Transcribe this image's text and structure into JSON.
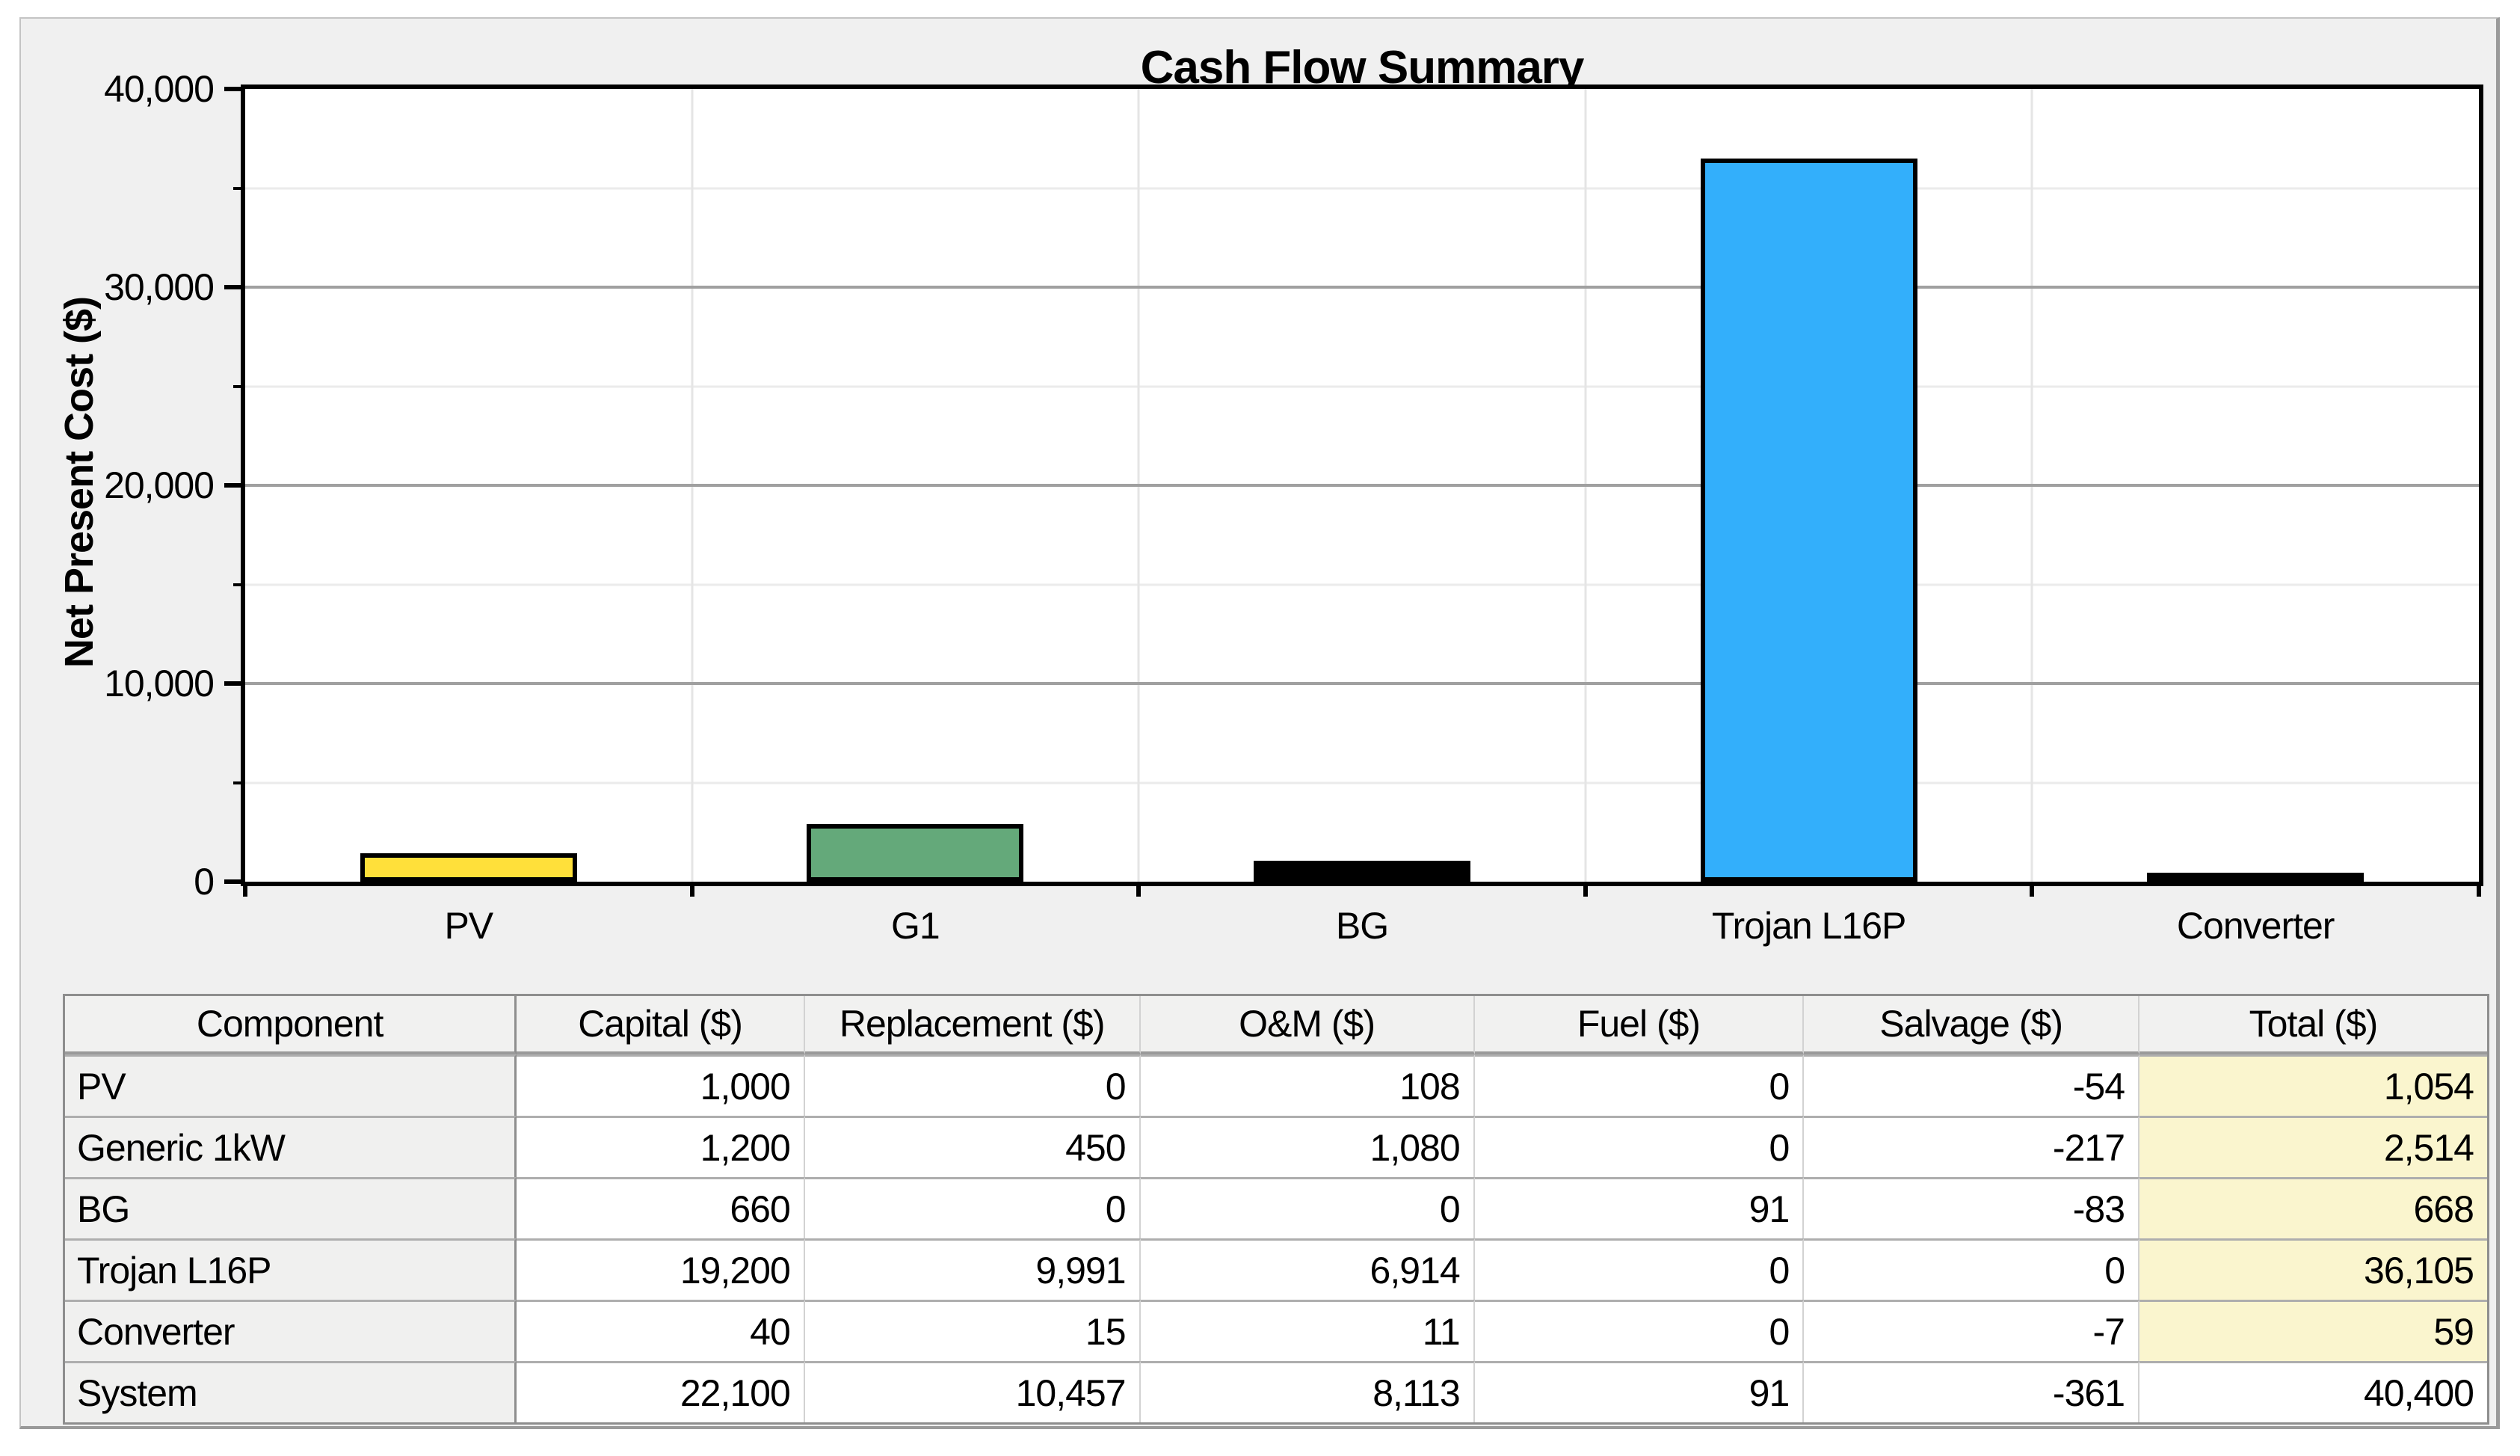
{
  "chart_data": {
    "type": "bar",
    "title": "Cash Flow Summary",
    "ylabel": "Net Present Cost ($)",
    "xlabel": "",
    "categories": [
      "PV",
      "G1",
      "BG",
      "Trojan L16P",
      "Converter"
    ],
    "values": [
      1054,
      2514,
      668,
      36105,
      59
    ],
    "bar_colors": [
      "#FFE03A",
      "#64A97A",
      "#000000",
      "#33AFFB",
      "#000000"
    ],
    "ylim": [
      0,
      40000
    ],
    "yticks": [
      {
        "value": 40000,
        "label": "40,000"
      },
      {
        "value": 30000,
        "label": "30,000"
      },
      {
        "value": 20000,
        "label": "20,000"
      },
      {
        "value": 10000,
        "label": "10,000"
      },
      {
        "value": 0,
        "label": "0"
      }
    ],
    "minor_yticks": [
      35000,
      25000,
      15000,
      5000
    ],
    "grid": true,
    "legend_position": "none"
  },
  "table": {
    "columns": [
      "Component",
      "Capital ($)",
      "Replacement ($)",
      "O&M ($)",
      "Fuel ($)",
      "Salvage ($)",
      "Total ($)"
    ],
    "rows": [
      {
        "cells": [
          "PV",
          "1,000",
          "0",
          "108",
          "0",
          "-54",
          "1,054"
        ],
        "total_highlight": true
      },
      {
        "cells": [
          "Generic 1kW",
          "1,200",
          "450",
          "1,080",
          "0",
          "-217",
          "2,514"
        ],
        "total_highlight": true
      },
      {
        "cells": [
          "BG",
          "660",
          "0",
          "0",
          "91",
          "-83",
          "668"
        ],
        "total_highlight": true
      },
      {
        "cells": [
          "Trojan L16P",
          "19,200",
          "9,991",
          "6,914",
          "0",
          "0",
          "36,105"
        ],
        "total_highlight": true
      },
      {
        "cells": [
          "Converter",
          "40",
          "15",
          "11",
          "0",
          "-7",
          "59"
        ],
        "total_highlight": true
      },
      {
        "cells": [
          "System",
          "22,100",
          "10,457",
          "8,113",
          "91",
          "-361",
          "40,400"
        ],
        "total_highlight": false
      }
    ]
  },
  "colors": {
    "panel_bg": "#f0f0f0",
    "plot_bg": "#ffffff",
    "grid_major": "#a0a0a0",
    "grid_minor": "#ebebeb",
    "grid_vertical": "#e5e5e5",
    "total_column_bg": "#faf5ce",
    "axis": "#000000"
  }
}
